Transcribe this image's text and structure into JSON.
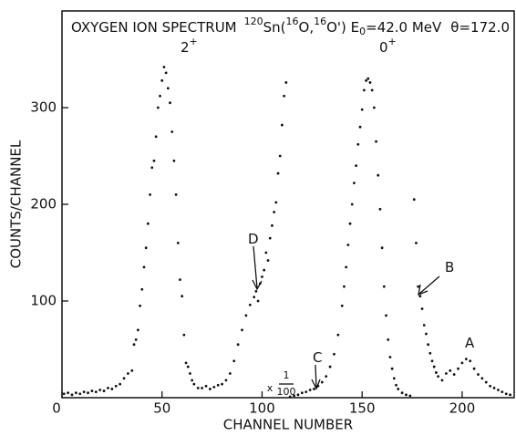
{
  "chart_data": {
    "type": "scatter",
    "title": [
      "OXYGEN ION SPECTRUM",
      "120",
      "Sn(",
      "16",
      "O,",
      "16",
      "O') E",
      "0",
      "=42.0 MeV",
      "θ=172.0"
    ],
    "xlabel": "CHANNEL NUMBER",
    "ylabel": "COUNTS/CHANNEL",
    "annotations": [
      {
        "text": "2",
        "sup": "+"
      },
      {
        "text": "0",
        "sup": "+"
      },
      {
        "text": "D"
      },
      {
        "text": "B"
      },
      {
        "text": "C"
      },
      {
        "text": "A"
      }
    ],
    "scale_note": {
      "prefix": "x",
      "num": "1",
      "den": "100"
    },
    "color": "#111111",
    "xlim": [
      0,
      226
    ],
    "ylim": [
      0,
      400
    ],
    "xticks": [
      0,
      50,
      100,
      150,
      200
    ],
    "yticks": [
      100,
      200,
      300
    ],
    "x": [
      1,
      3,
      5,
      7,
      9,
      11,
      13,
      15,
      17,
      19,
      21,
      23,
      25,
      27,
      29,
      31,
      33,
      35,
      36,
      37,
      38,
      39,
      40,
      41,
      42,
      43,
      44,
      45,
      46,
      47,
      48,
      49,
      50,
      51,
      52,
      53,
      54,
      55,
      56,
      57,
      58,
      59,
      60,
      61,
      62,
      63,
      64,
      65,
      66,
      68,
      70,
      72,
      74,
      76,
      78,
      80,
      82,
      84,
      86,
      88,
      90,
      92,
      94,
      96,
      97,
      98,
      99,
      100,
      101,
      102,
      103,
      104,
      105,
      106,
      107,
      108,
      109,
      110,
      111,
      112,
      114,
      116,
      118,
      120,
      122,
      124,
      126,
      128,
      130,
      132,
      134,
      136,
      138,
      140,
      141,
      142,
      143,
      144,
      145,
      146,
      147,
      148,
      149,
      150,
      151,
      152,
      153,
      154,
      155,
      156,
      157,
      158,
      159,
      160,
      161,
      162,
      163,
      164,
      165,
      166,
      167,
      168,
      170,
      172,
      174,
      176,
      177,
      178,
      179,
      180,
      181,
      182,
      183,
      184,
      185,
      186,
      187,
      188,
      190,
      192,
      194,
      196,
      198,
      200,
      202,
      204,
      206,
      208,
      210,
      212,
      214,
      216,
      218,
      220,
      222,
      224
    ],
    "values": [
      4,
      5,
      3,
      5,
      4,
      6,
      5,
      7,
      6,
      8,
      7,
      10,
      9,
      12,
      14,
      20,
      25,
      28,
      55,
      60,
      70,
      95,
      112,
      135,
      155,
      180,
      210,
      238,
      245,
      270,
      300,
      312,
      328,
      342,
      336,
      320,
      305,
      275,
      245,
      210,
      160,
      122,
      105,
      65,
      36,
      32,
      25,
      18,
      14,
      10,
      10,
      12,
      9,
      11,
      13,
      14,
      18,
      25,
      38,
      55,
      70,
      85,
      96,
      104,
      110,
      100,
      118,
      125,
      132,
      150,
      142,
      165,
      178,
      192,
      202,
      232,
      250,
      282,
      312,
      326,
      1,
      2,
      3,
      5,
      6,
      8,
      9,
      12,
      16,
      22,
      32,
      45,
      65,
      95,
      115,
      135,
      158,
      180,
      200,
      222,
      240,
      262,
      280,
      298,
      318,
      328,
      330,
      326,
      318,
      300,
      265,
      230,
      195,
      155,
      115,
      85,
      60,
      42,
      30,
      20,
      13,
      9,
      5,
      3,
      2,
      205,
      160,
      115,
      105,
      92,
      75,
      66,
      55,
      46,
      38,
      32,
      26,
      22,
      18,
      25,
      28,
      24,
      30,
      36,
      40,
      38,
      30,
      24,
      20,
      16,
      12,
      10,
      8,
      6,
      4,
      3
    ]
  }
}
